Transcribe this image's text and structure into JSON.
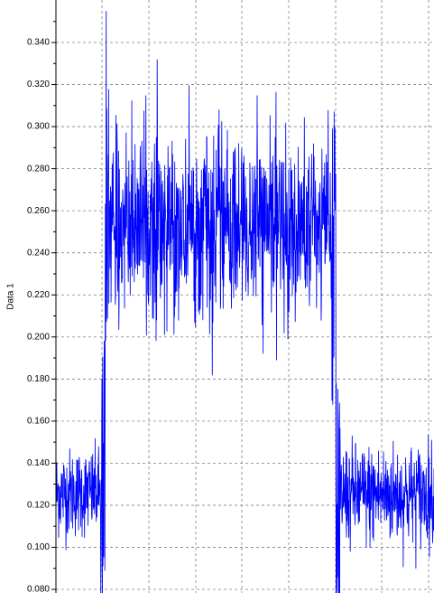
{
  "colors": {
    "background": "#ffffff",
    "grid": "#808080",
    "axis": "#000000",
    "series_main": "#0000ff",
    "series_secondary": "#008080"
  },
  "chart_data": {
    "type": "line",
    "title": "",
    "xlabel": "",
    "ylabel": "Data 1",
    "ylim": [
      0.08,
      0.355
    ],
    "yticks": [
      "0.080",
      "0.100",
      "0.120",
      "0.140",
      "0.160",
      "0.180",
      "0.200",
      "0.220",
      "0.240",
      "0.260",
      "0.280",
      "0.300",
      "0.320",
      "0.340"
    ],
    "grid": true,
    "legend": "none",
    "series": [
      {
        "segments": [
          {
            "x_start": 0.0,
            "x_end": 0.13,
            "mean": 0.126,
            "noise_min": 0.091,
            "noise_max": 0.16
          },
          {
            "x_start": 0.13,
            "x_end": 0.74,
            "mean": 0.252,
            "noise_min": 0.205,
            "noise_max": 0.345
          },
          {
            "x_start": 0.74,
            "x_end": 1.0,
            "mean": 0.125,
            "noise_min": 0.08,
            "noise_max": 0.16
          }
        ],
        "peak": 0.355,
        "transitions": [
          0.13,
          0.74
        ]
      }
    ]
  }
}
